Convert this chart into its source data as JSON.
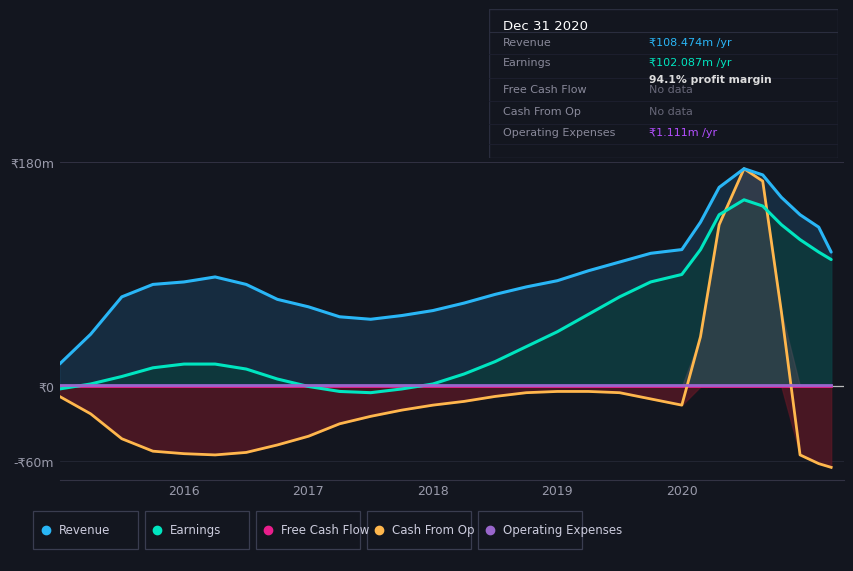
{
  "bg_color": "#13161f",
  "plot_bg_color": "#13161f",
  "grid_color": "#252836",
  "title_box": {
    "date": "Dec 31 2020",
    "rows": [
      {
        "label": "Revenue",
        "value": "₹108.474m /yr",
        "value_color": "#29b6f6"
      },
      {
        "label": "Earnings",
        "value": "₹102.087m /yr",
        "value_color": "#00e5c0",
        "extra": "94.1% profit margin"
      },
      {
        "label": "Free Cash Flow",
        "value": "No data",
        "value_color": "#666677"
      },
      {
        "label": "Cash From Op",
        "value": "No data",
        "value_color": "#666677"
      },
      {
        "label": "Operating Expenses",
        "value": "₹1.111m /yr",
        "value_color": "#b44fff"
      }
    ]
  },
  "legend": [
    {
      "label": "Revenue",
      "color": "#29b6f6"
    },
    {
      "label": "Earnings",
      "color": "#00e5c0"
    },
    {
      "label": "Free Cash Flow",
      "color": "#e91e8c"
    },
    {
      "label": "Cash From Op",
      "color": "#ffb74d"
    },
    {
      "label": "Operating Expenses",
      "color": "#9966cc"
    }
  ],
  "ylim": [
    -75,
    195
  ],
  "ytick_vals": [
    -60,
    0,
    180
  ],
  "ytick_labels": [
    "-₹60m",
    "₹0",
    "₹180m"
  ],
  "xlim": [
    2015.0,
    2021.3
  ],
  "xticks": [
    2016,
    2017,
    2018,
    2019,
    2020
  ],
  "series": {
    "x": [
      2015.0,
      2015.25,
      2015.5,
      2015.75,
      2016.0,
      2016.25,
      2016.5,
      2016.75,
      2017.0,
      2017.25,
      2017.5,
      2017.75,
      2018.0,
      2018.25,
      2018.5,
      2018.75,
      2019.0,
      2019.25,
      2019.5,
      2019.75,
      2020.0,
      2020.15,
      2020.3,
      2020.5,
      2020.65,
      2020.8,
      2020.95,
      2021.1,
      2021.2
    ],
    "revenue": [
      18,
      42,
      72,
      82,
      84,
      88,
      82,
      70,
      64,
      56,
      54,
      57,
      61,
      67,
      74,
      80,
      85,
      93,
      100,
      107,
      110,
      132,
      160,
      175,
      170,
      152,
      138,
      128,
      108
    ],
    "earnings": [
      -2,
      2,
      8,
      15,
      18,
      18,
      14,
      6,
      0,
      -4,
      -5,
      -2,
      2,
      10,
      20,
      32,
      44,
      58,
      72,
      84,
      90,
      110,
      138,
      150,
      145,
      130,
      118,
      108,
      102
    ],
    "free_cash_flow": [
      0,
      0,
      0,
      0,
      0,
      0,
      0,
      0,
      0,
      0,
      0,
      0,
      0,
      0,
      0,
      0,
      0,
      0,
      0,
      0,
      0,
      0,
      0,
      0,
      0,
      0,
      0,
      0,
      0
    ],
    "cash_from_op": [
      -8,
      -22,
      -42,
      -52,
      -54,
      -55,
      -53,
      -47,
      -40,
      -30,
      -24,
      -19,
      -15,
      -12,
      -8,
      -5,
      -4,
      -4,
      -5,
      -10,
      -15,
      40,
      130,
      175,
      165,
      60,
      -55,
      -62,
      -65
    ],
    "operating_expenses": [
      1,
      1,
      1,
      1,
      1,
      1,
      1,
      1,
      1,
      1,
      1,
      1,
      1,
      1,
      1,
      1,
      1,
      1,
      1,
      1,
      1,
      1,
      1,
      1,
      1,
      1,
      1,
      1,
      1
    ]
  },
  "colors": {
    "revenue": "#29b6f6",
    "earnings": "#00e5c0",
    "free_cash_flow": "#e91e8c",
    "cash_from_op": "#ffb74d",
    "operating_expenses": "#9966cc",
    "revenue_fill": "#1a3f5c",
    "earnings_fill": "#0a3d3a",
    "cash_neg_fill": "#5a1825",
    "cash_pos_fill": "#4a4a55"
  }
}
